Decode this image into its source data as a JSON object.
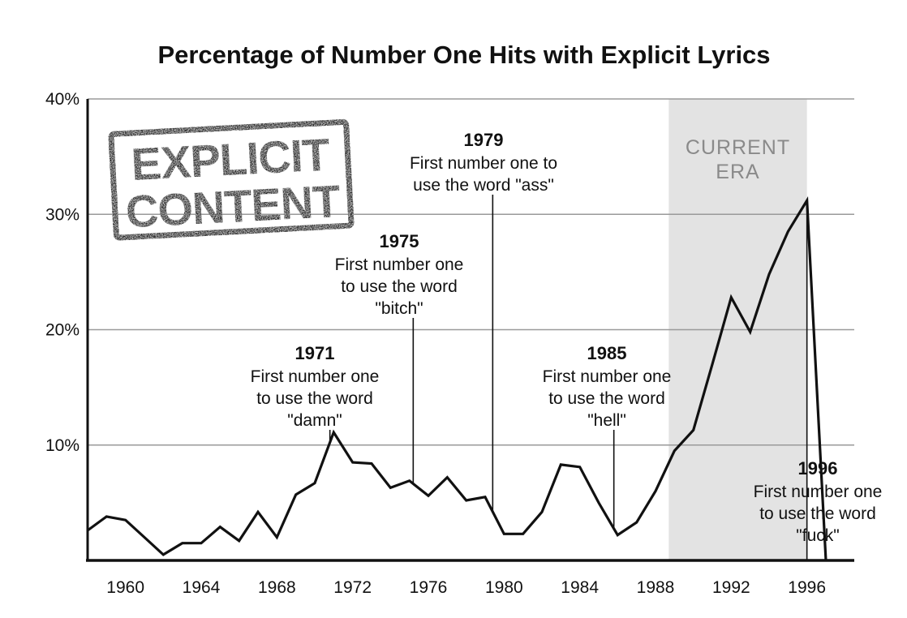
{
  "chart_data": {
    "type": "line",
    "title": "Percentage of Number One Hits with Explicit Lyrics",
    "xlim": [
      1958,
      1998.5
    ],
    "ylim": [
      0,
      40
    ],
    "y_ticks": [
      {
        "value": 10,
        "label": "10%"
      },
      {
        "value": 20,
        "label": "20%"
      },
      {
        "value": 30,
        "label": "30%"
      },
      {
        "value": 40,
        "label": "40%"
      }
    ],
    "x_ticks": [
      {
        "value": 1960,
        "label": "1960"
      },
      {
        "value": 1964,
        "label": "1964"
      },
      {
        "value": 1968,
        "label": "1968"
      },
      {
        "value": 1972,
        "label": "1972"
      },
      {
        "value": 1976,
        "label": "1976"
      },
      {
        "value": 1980,
        "label": "1980"
      },
      {
        "value": 1984,
        "label": "1984"
      },
      {
        "value": 1988,
        "label": "1988"
      },
      {
        "value": 1992,
        "label": "1992"
      },
      {
        "value": 1996,
        "label": "1996"
      }
    ],
    "grid": true,
    "series": [
      {
        "x": [
          1958,
          1959,
          1960,
          1961,
          1962,
          1963,
          1964,
          1965,
          1966,
          1967,
          1968,
          1969,
          1970,
          1971,
          1972,
          1973,
          1974,
          1975,
          1976,
          1977,
          1978,
          1979,
          1980,
          1981,
          1982,
          1983,
          1984,
          1985,
          1986,
          1987,
          1988,
          1989,
          1990,
          1991,
          1992,
          1993,
          1994,
          1995,
          1996,
          1997,
          1998
        ],
        "y": [
          2.6,
          3.8,
          3.5,
          2.0,
          0.5,
          1.5,
          1.5,
          2.9,
          1.7,
          4.2,
          2.0,
          5.7,
          6.7,
          11.1,
          8.5,
          8.4,
          6.3,
          6.9,
          5.6,
          7.2,
          5.2,
          5.5,
          2.3,
          2.3,
          4.2,
          8.3,
          8.1,
          5.0,
          2.2,
          3.3,
          6.0,
          9.5,
          11.3,
          17.0,
          22.8,
          19.8,
          24.8,
          28.5,
          31.2,
          0,
          0
        ]
      }
    ],
    "shaded_region": {
      "x_start": 1988.7,
      "x_end": 1996,
      "label_lines": [
        "CURRENT",
        "ERA"
      ]
    },
    "annotations": [
      {
        "year": "1971",
        "x": 1970.8,
        "lines": [
          "First number one",
          "to use the word",
          "\"damn\""
        ]
      },
      {
        "year": "1975",
        "x": 1975.2,
        "lines": [
          "First number one",
          "to use the word",
          "\"bitch\""
        ]
      },
      {
        "year": "1979",
        "x": 1979.4,
        "lines": [
          "First number one to",
          "use the word \"ass\""
        ]
      },
      {
        "year": "1985",
        "x": 1985.8,
        "lines": [
          "First number one",
          "to use the word",
          "\"hell\""
        ]
      },
      {
        "year": "1996",
        "x": 1996,
        "lines": [
          "First number one",
          "to use the word",
          "\"fuck\""
        ]
      }
    ],
    "stamp_lines": [
      "EXPLICIT",
      "CONTENT"
    ]
  }
}
